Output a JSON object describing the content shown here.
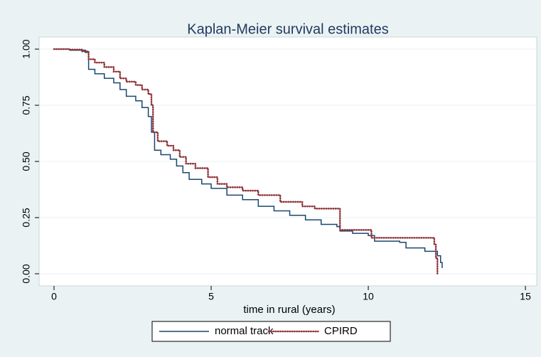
{
  "chart_data": {
    "type": "line",
    "step": true,
    "title": "Kaplan-Meier survival estimates",
    "x_label": "time in rural (years)",
    "xlim": [
      -0.475,
      15.36
    ],
    "xticks": [
      0,
      5,
      10,
      15
    ],
    "ylim": [
      -0.054,
      1.054
    ],
    "yticks": [
      {
        "value": 0,
        "label": "0.00"
      },
      {
        "value": 0.25,
        "label": "0.25"
      },
      {
        "value": 0.5,
        "label": "0.50"
      },
      {
        "value": 0.75,
        "label": "0.75"
      },
      {
        "value": 1,
        "label": "1.00"
      }
    ],
    "grid": true,
    "series": [
      {
        "name": "normal track",
        "color": "#1a476f",
        "marker": false,
        "x": [
          0,
          0.5,
          1.0,
          1.1,
          1.3,
          1.6,
          1.9,
          2.1,
          2.3,
          2.6,
          2.8,
          3.0,
          3.1,
          3.2,
          3.4,
          3.7,
          3.9,
          4.1,
          4.3,
          4.7,
          5.0,
          5.5,
          6.0,
          6.5,
          7.0,
          7.5,
          8.0,
          8.5,
          9.0,
          9.1,
          9.5,
          10.0,
          10.2,
          11.0,
          11.2,
          11.8,
          12.2,
          12.3,
          12.35
        ],
        "values": [
          1.0,
          0.995,
          0.985,
          0.91,
          0.89,
          0.87,
          0.85,
          0.82,
          0.79,
          0.77,
          0.74,
          0.7,
          0.63,
          0.55,
          0.53,
          0.51,
          0.48,
          0.45,
          0.42,
          0.4,
          0.38,
          0.35,
          0.33,
          0.3,
          0.28,
          0.26,
          0.24,
          0.22,
          0.21,
          0.19,
          0.18,
          0.17,
          0.145,
          0.14,
          0.115,
          0.1,
          0.08,
          0.05,
          0.025
        ]
      },
      {
        "name": "CPIRD",
        "color": "#90353b",
        "marker": true,
        "x": [
          0,
          0.5,
          0.9,
          1.1,
          1.3,
          1.6,
          1.9,
          2.1,
          2.3,
          2.6,
          2.8,
          3.0,
          3.1,
          3.15,
          3.3,
          3.6,
          3.8,
          4.0,
          4.2,
          4.5,
          4.9,
          5.2,
          5.5,
          6.0,
          6.5,
          7.2,
          7.9,
          8.3,
          9.1,
          10.1,
          12.1,
          12.15,
          12.2
        ],
        "values": [
          1.0,
          0.998,
          0.99,
          0.955,
          0.94,
          0.92,
          0.9,
          0.87,
          0.855,
          0.84,
          0.82,
          0.8,
          0.75,
          0.63,
          0.59,
          0.57,
          0.55,
          0.52,
          0.49,
          0.47,
          0.43,
          0.4,
          0.385,
          0.37,
          0.35,
          0.32,
          0.3,
          0.29,
          0.195,
          0.16,
          0.13,
          0.07,
          0.0
        ]
      }
    ]
  }
}
